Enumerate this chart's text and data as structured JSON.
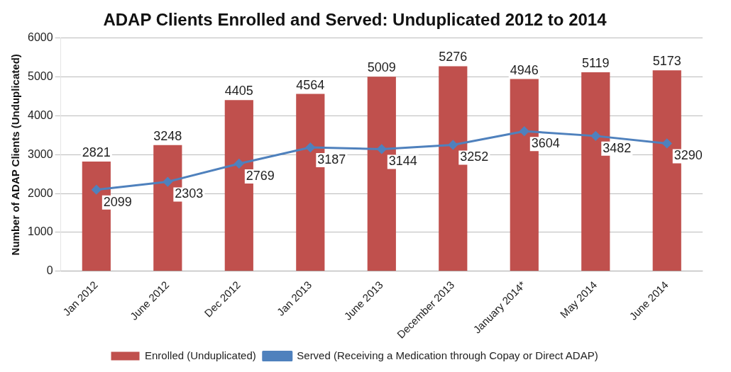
{
  "chart_data": {
    "type": "bar",
    "title": "ADAP Clients Enrolled and Served: Unduplicated 2012 to 2014",
    "ylabel": "Number of ADAP Clients (Unduplicated)",
    "categories": [
      "Jan 2012",
      "June 2012",
      "Dec 2012",
      "Jan 2013",
      "June 2013",
      "December 2013",
      "January 2014*",
      "May 2014",
      "June 2014"
    ],
    "series": [
      {
        "name": "Enrolled (Unduplicated)",
        "color": "#c0504d",
        "values": [
          2821,
          3248,
          4405,
          4564,
          5009,
          5276,
          4946,
          5119,
          5173
        ]
      },
      {
        "name": "Served (Receiving a Medication through Copay or Direct ADAP)",
        "type": "line",
        "color": "#4f81bd",
        "marker": "diamond",
        "values": [
          2099,
          2303,
          2769,
          3187,
          3144,
          3252,
          3604,
          3482,
          3290
        ]
      }
    ],
    "ylim": [
      0,
      6000
    ],
    "yticks": [
      0,
      1000,
      2000,
      3000,
      4000,
      5000,
      6000
    ],
    "grid": "y",
    "legend": "bottom",
    "data_labels": true
  }
}
